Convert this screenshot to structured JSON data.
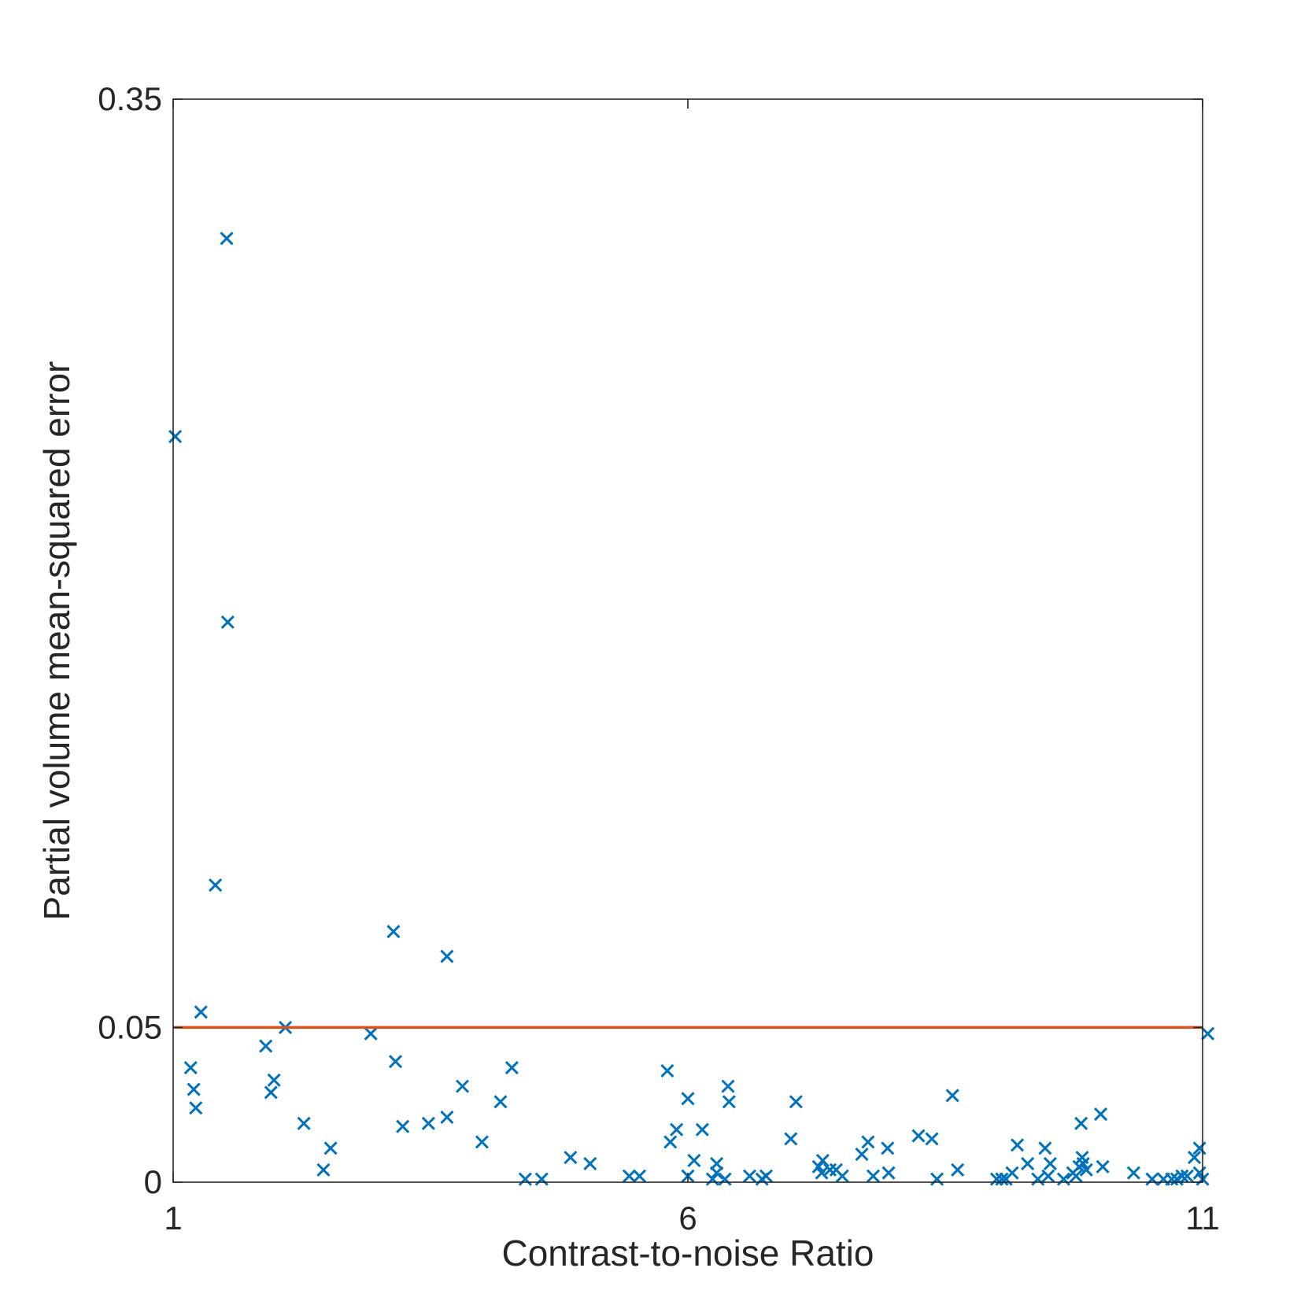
{
  "chart_data": {
    "type": "scatter",
    "title": "",
    "xlabel": "Contrast-to-noise Ratio",
    "ylabel": "Partial volume mean-squared error",
    "xlim": [
      1,
      11
    ],
    "ylim": [
      0,
      0.35
    ],
    "xticks": [
      1,
      6,
      11
    ],
    "yticks": [
      0,
      0.05,
      0.35
    ],
    "xtick_labels": [
      "1",
      "6",
      "11"
    ],
    "ytick_labels": [
      "0",
      "0.05",
      "0.35"
    ],
    "grid": false,
    "legend": "none",
    "colors": {
      "marker": "#0072BD",
      "threshold_line": "#D95319",
      "axes": "#262626"
    },
    "threshold": {
      "y": 0.05
    },
    "series": [
      {
        "marker": "x",
        "points": [
          [
            1.02,
            0.241
          ],
          [
            1.52,
            0.305
          ],
          [
            1.53,
            0.181
          ],
          [
            1.41,
            0.096
          ],
          [
            1.27,
            0.055
          ],
          [
            1.17,
            0.037
          ],
          [
            1.2,
            0.03
          ],
          [
            1.22,
            0.024
          ],
          [
            1.9,
            0.044
          ],
          [
            1.98,
            0.033
          ],
          [
            1.95,
            0.029
          ],
          [
            2.09,
            0.05
          ],
          [
            2.27,
            0.019
          ],
          [
            2.46,
            0.004
          ],
          [
            2.53,
            0.011
          ],
          [
            2.92,
            0.048
          ],
          [
            3.14,
            0.081
          ],
          [
            3.16,
            0.039
          ],
          [
            3.23,
            0.018
          ],
          [
            3.48,
            0.019
          ],
          [
            3.66,
            0.021
          ],
          [
            3.66,
            0.073
          ],
          [
            3.81,
            0.031
          ],
          [
            4.0,
            0.013
          ],
          [
            4.18,
            0.026
          ],
          [
            4.29,
            0.037
          ],
          [
            4.42,
            0.001
          ],
          [
            4.58,
            0.001
          ],
          [
            4.86,
            0.008
          ],
          [
            5.05,
            0.006
          ],
          [
            5.43,
            0.002
          ],
          [
            5.53,
            0.002
          ],
          [
            5.8,
            0.036
          ],
          [
            5.83,
            0.013
          ],
          [
            5.89,
            0.017
          ],
          [
            6.0,
            0.027
          ],
          [
            6.0,
            0.002
          ],
          [
            6.06,
            0.007
          ],
          [
            6.14,
            0.017
          ],
          [
            6.24,
            0.001
          ],
          [
            6.28,
            0.003
          ],
          [
            6.28,
            0.006
          ],
          [
            6.36,
            0.001
          ],
          [
            6.39,
            0.031
          ],
          [
            6.4,
            0.026
          ],
          [
            6.6,
            0.002
          ],
          [
            6.72,
            0.001
          ],
          [
            6.76,
            0.002
          ],
          [
            7.0,
            0.014
          ],
          [
            7.05,
            0.026
          ],
          [
            7.27,
            0.005
          ],
          [
            7.3,
            0.003
          ],
          [
            7.31,
            0.007
          ],
          [
            7.38,
            0.004
          ],
          [
            7.44,
            0.004
          ],
          [
            7.5,
            0.002
          ],
          [
            7.69,
            0.009
          ],
          [
            7.75,
            0.013
          ],
          [
            7.8,
            0.002
          ],
          [
            7.94,
            0.011
          ],
          [
            7.95,
            0.003
          ],
          [
            8.24,
            0.015
          ],
          [
            8.37,
            0.014
          ],
          [
            8.42,
            0.001
          ],
          [
            8.57,
            0.028
          ],
          [
            8.62,
            0.004
          ],
          [
            9.0,
            0.001
          ],
          [
            9.05,
            0.001
          ],
          [
            9.09,
            0.001
          ],
          [
            9.15,
            0.003
          ],
          [
            9.2,
            0.012
          ],
          [
            9.3,
            0.006
          ],
          [
            9.4,
            0.001
          ],
          [
            9.47,
            0.011
          ],
          [
            9.5,
            0.002
          ],
          [
            9.52,
            0.006
          ],
          [
            9.65,
            0.001
          ],
          [
            9.74,
            0.003
          ],
          [
            9.77,
            0.002
          ],
          [
            9.8,
            0.005
          ],
          [
            9.82,
            0.019
          ],
          [
            9.83,
            0.008
          ],
          [
            9.84,
            0.006
          ],
          [
            9.87,
            0.004
          ],
          [
            10.01,
            0.022
          ],
          [
            10.03,
            0.005
          ],
          [
            10.33,
            0.003
          ],
          [
            10.51,
            0.001
          ],
          [
            10.62,
            0.001
          ],
          [
            10.7,
            0.001
          ],
          [
            10.75,
            0.001
          ],
          [
            10.8,
            0.002
          ],
          [
            10.92,
            0.008
          ],
          [
            11.0,
            0.001
          ],
          [
            10.85,
            0.002
          ],
          [
            10.97,
            0.011
          ],
          [
            10.97,
            0.003
          ],
          [
            11.05,
            0.048
          ]
        ]
      }
    ]
  }
}
